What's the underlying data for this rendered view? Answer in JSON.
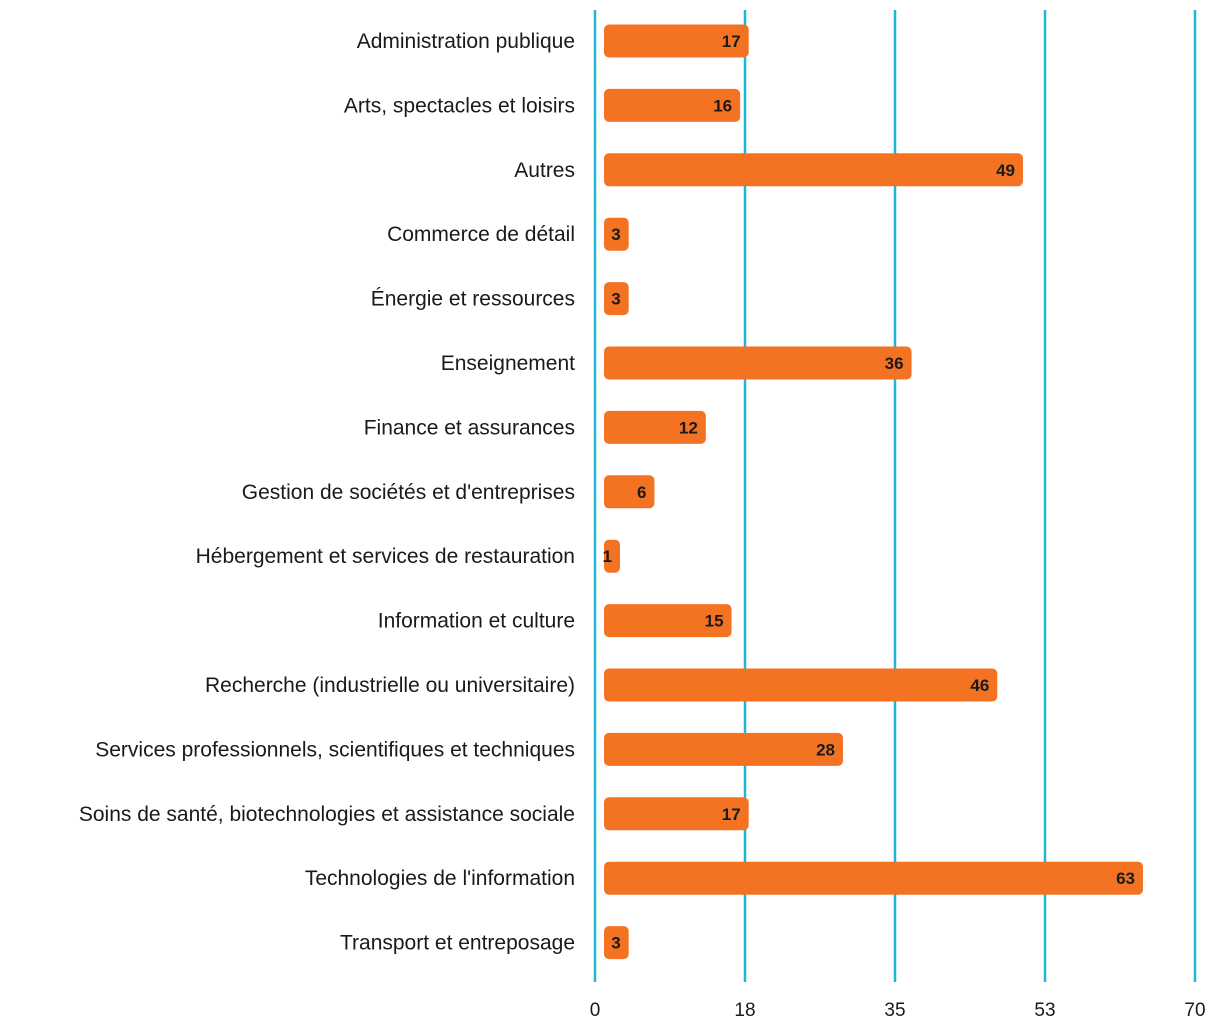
{
  "chart_data": {
    "type": "bar",
    "orientation": "horizontal",
    "title": "",
    "xlabel": "",
    "ylabel": "",
    "categories": [
      "Administration publique",
      "Arts, spectacles et loisirs",
      "Autres",
      "Commerce de détail",
      "Énergie et ressources",
      "Enseignement",
      "Finance et assurances",
      "Gestion de sociétés et d'entreprises",
      "Hébergement et services de restauration",
      "Information et culture",
      "Recherche (industrielle ou universitaire)",
      "Services professionnels, scientifiques et techniques",
      "Soins de santé, biotechnologies et assistance sociale",
      "Technologies de l'information",
      "Transport et entreposage"
    ],
    "values": [
      17,
      16,
      49,
      3,
      3,
      36,
      12,
      6,
      1,
      15,
      46,
      28,
      17,
      63,
      3
    ],
    "data_labels": [
      "17",
      "16",
      "49",
      "3",
      "3",
      "36",
      "12",
      "6",
      "1",
      "15",
      "46",
      "28",
      "17",
      "63",
      "3"
    ],
    "xlim": [
      0,
      70
    ],
    "x_ticks": [
      0,
      17.5,
      35,
      52.5,
      70
    ],
    "x_tick_labels": [
      "0",
      "18",
      "35",
      "53",
      "70"
    ],
    "grid": true,
    "legend": "none",
    "colors": {
      "bar": "#f47322",
      "grid": "#1fb6d9",
      "text": "#1a1a1a"
    }
  }
}
